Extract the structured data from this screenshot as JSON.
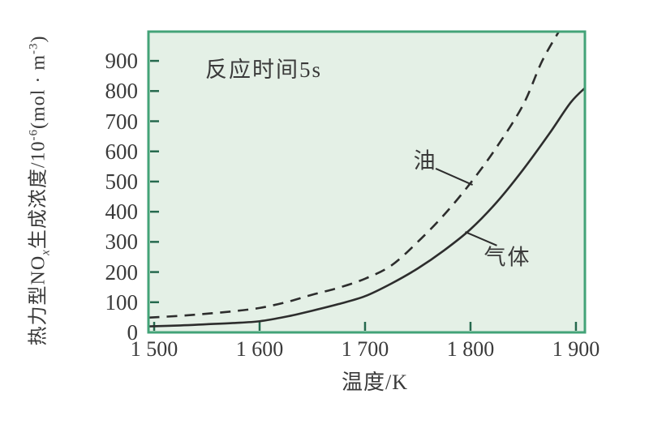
{
  "chart": {
    "annotation": "反应时间5s",
    "xlabel": "温度/K",
    "ylabel_parts": {
      "p1": "热力型NO",
      "sub1": "x",
      "p2": "生成浓度/10",
      "sup1": "-6",
      "p3": "(mol · m",
      "sup2": "-3",
      "p4": ")"
    },
    "colors": {
      "plot_bg": "#e4f0e6",
      "border": "#43a378",
      "tick": "#25694e",
      "curve": "#2d2d2d",
      "text": "#3a3a3a"
    }
  },
  "chart_data": {
    "type": "line",
    "title": "",
    "annotation": "反应时间5s",
    "xlabel": "温度/K",
    "ylabel": "热力型NOx生成浓度/10⁻⁶(mol·m⁻³)",
    "xlim": [
      1494.6,
      1908.5
    ],
    "ylim": [
      0,
      997
    ],
    "grid": false,
    "legend_position": "none",
    "xticks": {
      "values": [
        1500,
        1600,
        1700,
        1800,
        1900
      ],
      "labels": [
        "1 500",
        "1 600",
        "1 700",
        "1 800",
        "1 900"
      ]
    },
    "yticks": {
      "values": [
        0,
        100,
        200,
        300,
        400,
        500,
        600,
        700,
        800,
        900
      ],
      "labels": [
        "0",
        "100",
        "200",
        "300",
        "400",
        "500",
        "600",
        "700",
        "800",
        "900"
      ]
    },
    "series": [
      {
        "name": "油",
        "style": "dashed",
        "x": [
          1495,
          1525,
          1550,
          1575,
          1600,
          1625,
          1650,
          1675,
          1700,
          1725,
          1750,
          1775,
          1800,
          1825,
          1850,
          1868,
          1886
        ],
        "y": [
          49,
          55,
          62,
          70,
          81,
          100,
          125,
          148,
          178,
          222,
          300,
          390,
          495,
          615,
          755,
          900,
          1010
        ],
        "label": {
          "t": 1757,
          "v": 575
        },
        "leader": {
          "t1": 1767,
          "v1": 543,
          "t2": 1802,
          "v2": 489
        }
      },
      {
        "name": "气体",
        "style": "solid",
        "x": [
          1495,
          1525,
          1550,
          1575,
          1600,
          1625,
          1650,
          1675,
          1700,
          1725,
          1750,
          1775,
          1800,
          1825,
          1850,
          1875,
          1895,
          1910
        ],
        "y": [
          20,
          23,
          27,
          31,
          37,
          52,
          72,
          94,
          120,
          162,
          212,
          272,
          342,
          432,
          540,
          660,
          762,
          815
        ],
        "label": {
          "t": 1835,
          "v": 255
        },
        "leader": {
          "t1": 1795,
          "v1": 333,
          "t2": 1825,
          "v2": 288
        }
      }
    ]
  }
}
